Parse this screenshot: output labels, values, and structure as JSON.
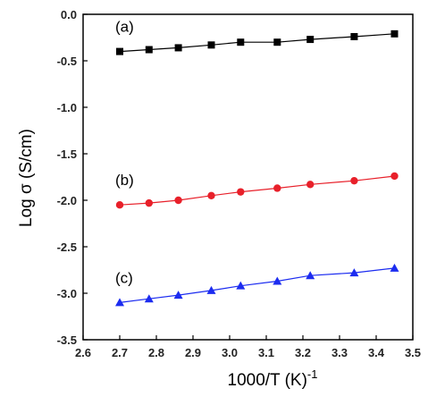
{
  "chart_data": {
    "type": "line",
    "xlabel": "1000/T (K)",
    "xlabel_sup": "-1",
    "ylabel": "Log σ (S/cm)",
    "xlim": [
      2.6,
      3.5
    ],
    "ylim": [
      -3.5,
      0.0
    ],
    "xticks": [
      "2.6",
      "2.7",
      "2.8",
      "2.9",
      "3.0",
      "3.1",
      "3.2",
      "3.3",
      "3.4",
      "3.5"
    ],
    "yticks": [
      "0.0",
      "-0.5",
      "-1.0",
      "-1.5",
      "-2.0",
      "-2.5",
      "-3.0",
      "-3.5"
    ],
    "grid": false,
    "series": [
      {
        "name": "(a)",
        "color": "#000000",
        "marker": "square",
        "x": [
          2.7,
          2.78,
          2.86,
          2.95,
          3.03,
          3.13,
          3.22,
          3.34,
          3.45
        ],
        "y": [
          -0.4,
          -0.38,
          -0.36,
          -0.33,
          -0.3,
          -0.3,
          -0.27,
          -0.24,
          -0.21
        ]
      },
      {
        "name": "(b)",
        "color": "#e8202a",
        "marker": "circle",
        "x": [
          2.7,
          2.78,
          2.86,
          2.95,
          3.03,
          3.13,
          3.22,
          3.34,
          3.45
        ],
        "y": [
          -2.05,
          -2.03,
          -2.0,
          -1.95,
          -1.91,
          -1.87,
          -1.83,
          -1.79,
          -1.74
        ]
      },
      {
        "name": "(c)",
        "color": "#1c2cf0",
        "marker": "triangle",
        "x": [
          2.7,
          2.78,
          2.86,
          2.95,
          3.03,
          3.13,
          3.22,
          3.34,
          3.45
        ],
        "y": [
          -3.1,
          -3.06,
          -3.02,
          -2.97,
          -2.92,
          -2.87,
          -2.81,
          -2.78,
          -2.73
        ]
      }
    ]
  }
}
